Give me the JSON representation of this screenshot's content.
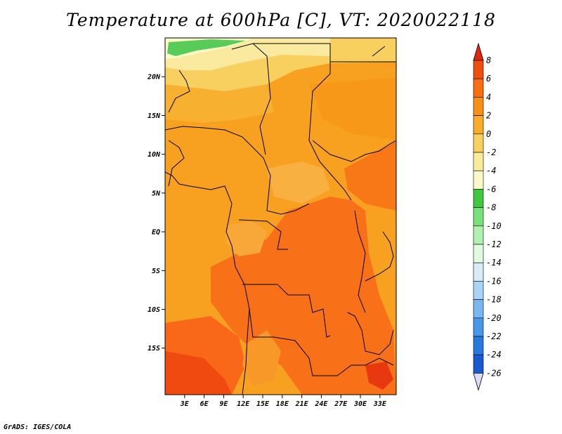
{
  "title": "Temperature at 600hPa [C], VT: 2020022118",
  "credit": "GrADS: IGES/COLA",
  "map": {
    "lat_range": [
      -21,
      25
    ],
    "lon_range": [
      0,
      35.5
    ],
    "lat_ticks": [
      "20N",
      "15N",
      "10N",
      "5N",
      "EQ",
      "5S",
      "10S",
      "15S"
    ],
    "lat_tick_values": [
      20,
      15,
      10,
      5,
      0,
      -5,
      -10,
      -15
    ],
    "lon_ticks": [
      "3E",
      "6E",
      "9E",
      "12E",
      "15E",
      "18E",
      "21E",
      "24E",
      "27E",
      "30E",
      "33E"
    ],
    "lon_tick_values": [
      3,
      6,
      9,
      12,
      15,
      18,
      21,
      24,
      27,
      30,
      33
    ]
  },
  "colorbar": {
    "labels": [
      "8",
      "6",
      "4",
      "2",
      "0",
      "-2",
      "-4",
      "-6",
      "-8",
      "-10",
      "-12",
      "-14",
      "-16",
      "-18",
      "-20",
      "-22",
      "-24",
      "-26"
    ],
    "colors": [
      "#e02810",
      "#f04e10",
      "#f86e10",
      "#f89018",
      "#f8ac28",
      "#f8d060",
      "#f8ec98",
      "#fafac8",
      "#40c840",
      "#78e078",
      "#b0f0b0",
      "#e0fae0",
      "#d8ecf8",
      "#a8d4f8",
      "#78b8f0",
      "#4898e8",
      "#2878e0",
      "#1858d0",
      "#1040b8",
      "#082890",
      "#0a0a60",
      "#dcdcf8"
    ]
  }
}
